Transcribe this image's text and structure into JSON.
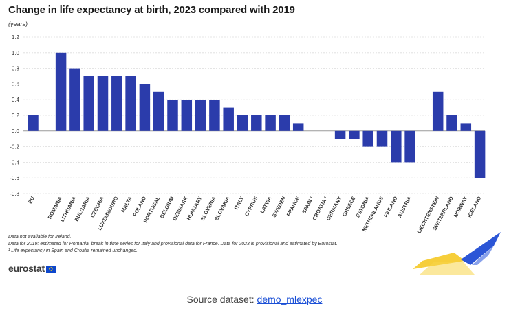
{
  "chart_data": {
    "type": "bar",
    "title": "Change in life expectancy at birth, 2023 compared with 2019",
    "ylabel": "(years)",
    "xlabel": "",
    "ylim": [
      -0.8,
      1.2
    ],
    "yticks": [
      "1.2",
      "1.0",
      "0.8",
      "0.6",
      "0.4",
      "0.2",
      "0.0",
      "-0.2",
      "-0.4",
      "-0.6",
      "-0.8"
    ],
    "grid": true,
    "bar_color": "#2b3cab",
    "groups": [
      {
        "categories": [
          "EU"
        ],
        "values": [
          0.2
        ]
      },
      {
        "categories": [
          "ROMANIA",
          "LITHUANIA",
          "BULGARIA",
          "CZECHIA",
          "LUXEMBOURG",
          "MALTA",
          "POLAND",
          "PORTUGAL",
          "BELGIUM",
          "DENMARK",
          "HUNGARY",
          "SLOVENIA",
          "SLOVAKIA",
          "ITALY",
          "CYPRUS",
          "LATVIA",
          "SWEDEN",
          "FRANCE",
          "SPAIN ¹",
          "CROATIA ¹",
          "GERMANY",
          "GREECE",
          "ESTONIA",
          "NETHERLANDS",
          "FINLAND",
          "AUSTRIA"
        ],
        "values": [
          1.0,
          0.8,
          0.7,
          0.7,
          0.7,
          0.7,
          0.6,
          0.5,
          0.4,
          0.4,
          0.4,
          0.4,
          0.3,
          0.2,
          0.2,
          0.2,
          0.2,
          0.1,
          0.0,
          0.0,
          -0.1,
          -0.1,
          -0.2,
          -0.2,
          -0.4,
          -0.4
        ]
      },
      {
        "categories": [
          "LIECHTENSTEIN",
          "SWITZERLAND",
          "NORWAY",
          "ICELAND"
        ],
        "values": [
          0.5,
          0.2,
          0.1,
          -0.6
        ]
      }
    ]
  },
  "notes": [
    "Data not available for Ireland.",
    "Data for 2019: estimated for Romania, break in time series for Italy and provisional data for France. Data for 2023 is provisional and estimated by Eurostat.",
    "¹ Life expectancy in Spain and Croatia remained unchanged."
  ],
  "logo": {
    "text": "eurostat"
  },
  "source": {
    "label": "Source dataset:",
    "link_text": "demo_mlexpec"
  },
  "colors": {
    "bar": "#2b3cab",
    "swoosh_blue": "#2b55d6",
    "swoosh_yellow": "#f5c518"
  }
}
